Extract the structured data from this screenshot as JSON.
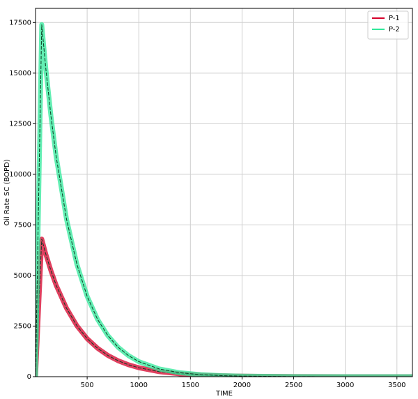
{
  "chart_data": {
    "type": "line",
    "xlabel": "TIME",
    "ylabel": "Oil Rate SC (BOPD)",
    "x": [
      0,
      30,
      60,
      100,
      150,
      200,
      300,
      400,
      500,
      600,
      700,
      800,
      900,
      1000,
      1200,
      1400,
      1600,
      1800,
      2000,
      2500,
      3000,
      3500,
      3650
    ],
    "series": [
      {
        "name": "P-1",
        "color": "#d6002a",
        "values": [
          0,
          3400,
          6800,
          6050,
          5230,
          4520,
          3380,
          2520,
          1880,
          1410,
          1050,
          785,
          588,
          440,
          245,
          137,
          76,
          43,
          24,
          4,
          1,
          0,
          0
        ]
      },
      {
        "name": "P-2",
        "color": "#2fe89a",
        "values": [
          0,
          8700,
          17400,
          15210,
          12860,
          10880,
          7780,
          5560,
          3970,
          2840,
          2030,
          1450,
          1040,
          743,
          380,
          194,
          99,
          51,
          26,
          5,
          1,
          0,
          0
        ]
      }
    ],
    "xlim": [
      0,
      3650
    ],
    "ylim": [
      0,
      18200
    ],
    "xticks": [
      500,
      1000,
      1500,
      2000,
      2500,
      3000,
      3500
    ],
    "yticks": [
      0,
      2500,
      5000,
      7500,
      10000,
      12500,
      15000,
      17500
    ],
    "grid": true,
    "legend": "upper right"
  }
}
